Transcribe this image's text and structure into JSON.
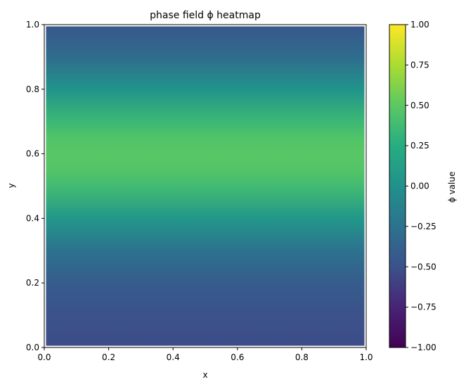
{
  "chart_data": {
    "type": "heatmap",
    "title": "phase field ϕ heatmap",
    "xlabel": "x",
    "ylabel": "y",
    "xlim": [
      0,
      1
    ],
    "ylim": [
      0,
      1
    ],
    "x_ticks": [
      "0.0",
      "0.2",
      "0.4",
      "0.6",
      "0.8",
      "1.0"
    ],
    "y_ticks": [
      "0.0",
      "0.2",
      "0.4",
      "0.6",
      "0.8",
      "1.0"
    ],
    "colormap": "viridis",
    "colorbar": {
      "label": "ϕ value",
      "range": [
        -1,
        1
      ],
      "ticks": [
        "−1.00",
        "−0.75",
        "−0.50",
        "−0.25",
        "0.00",
        "0.25",
        "0.50",
        "0.75",
        "1.00"
      ]
    },
    "field_profile": {
      "description_axis": "y",
      "y": [
        0.0,
        0.1,
        0.2,
        0.3,
        0.4,
        0.5,
        0.55,
        0.6,
        0.65,
        0.7,
        0.8,
        0.9,
        1.0
      ],
      "phi": [
        -0.53,
        -0.5,
        -0.42,
        -0.25,
        0.05,
        0.38,
        0.46,
        0.48,
        0.45,
        0.35,
        0.02,
        -0.3,
        -0.47
      ]
    },
    "grid": false,
    "legend": "none"
  }
}
